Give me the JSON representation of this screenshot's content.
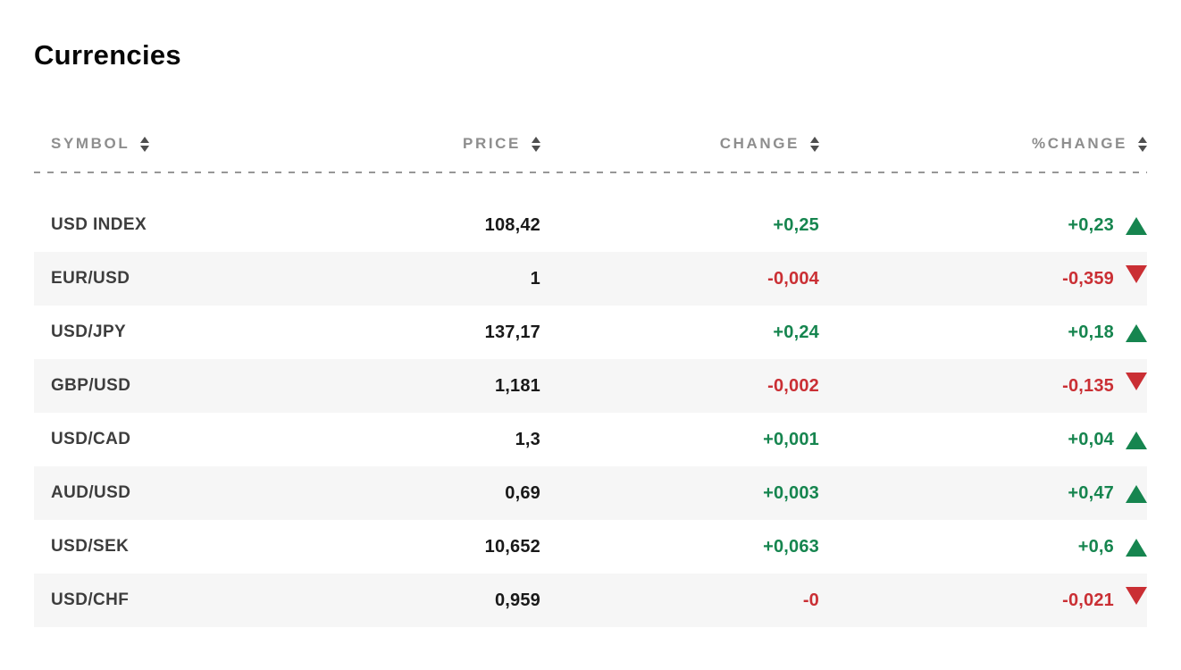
{
  "title": "Currencies",
  "colors": {
    "positive": "#16854f",
    "negative": "#ca2f34",
    "row_alt_background": "#f6f6f6",
    "header_text": "#8e8e8e",
    "symbol_text": "#3d3d3d",
    "value_text": "#191919"
  },
  "icons": {
    "sort": "sort-arrows-icon (▲▼)",
    "up": "up-triangle-icon (▲)",
    "down": "down-triangle-icon (▼)"
  },
  "table": {
    "columns": [
      {
        "key": "symbol",
        "label": "SYMBOL",
        "align": "left",
        "sortable": true
      },
      {
        "key": "price",
        "label": "PRICE",
        "align": "right",
        "sortable": true
      },
      {
        "key": "change",
        "label": "CHANGE",
        "align": "right",
        "sortable": true
      },
      {
        "key": "pct_change",
        "label": "%CHANGE",
        "align": "right",
        "sortable": true
      }
    ],
    "rows": [
      {
        "symbol": "USD INDEX",
        "price": "108,42",
        "change": "+0,25",
        "pct_change": "+0,23",
        "direction": "up"
      },
      {
        "symbol": "EUR/USD",
        "price": "1",
        "change": "-0,004",
        "pct_change": "-0,359",
        "direction": "down"
      },
      {
        "symbol": "USD/JPY",
        "price": "137,17",
        "change": "+0,24",
        "pct_change": "+0,18",
        "direction": "up"
      },
      {
        "symbol": "GBP/USD",
        "price": "1,181",
        "change": "-0,002",
        "pct_change": "-0,135",
        "direction": "down"
      },
      {
        "symbol": "USD/CAD",
        "price": "1,3",
        "change": "+0,001",
        "pct_change": "+0,04",
        "direction": "up"
      },
      {
        "symbol": "AUD/USD",
        "price": "0,69",
        "change": "+0,003",
        "pct_change": "+0,47",
        "direction": "up"
      },
      {
        "symbol": "USD/SEK",
        "price": "10,652",
        "change": "+0,063",
        "pct_change": "+0,6",
        "direction": "up"
      },
      {
        "symbol": "USD/CHF",
        "price": "0,959",
        "change": "-0",
        "pct_change": "-0,021",
        "direction": "down"
      }
    ]
  }
}
